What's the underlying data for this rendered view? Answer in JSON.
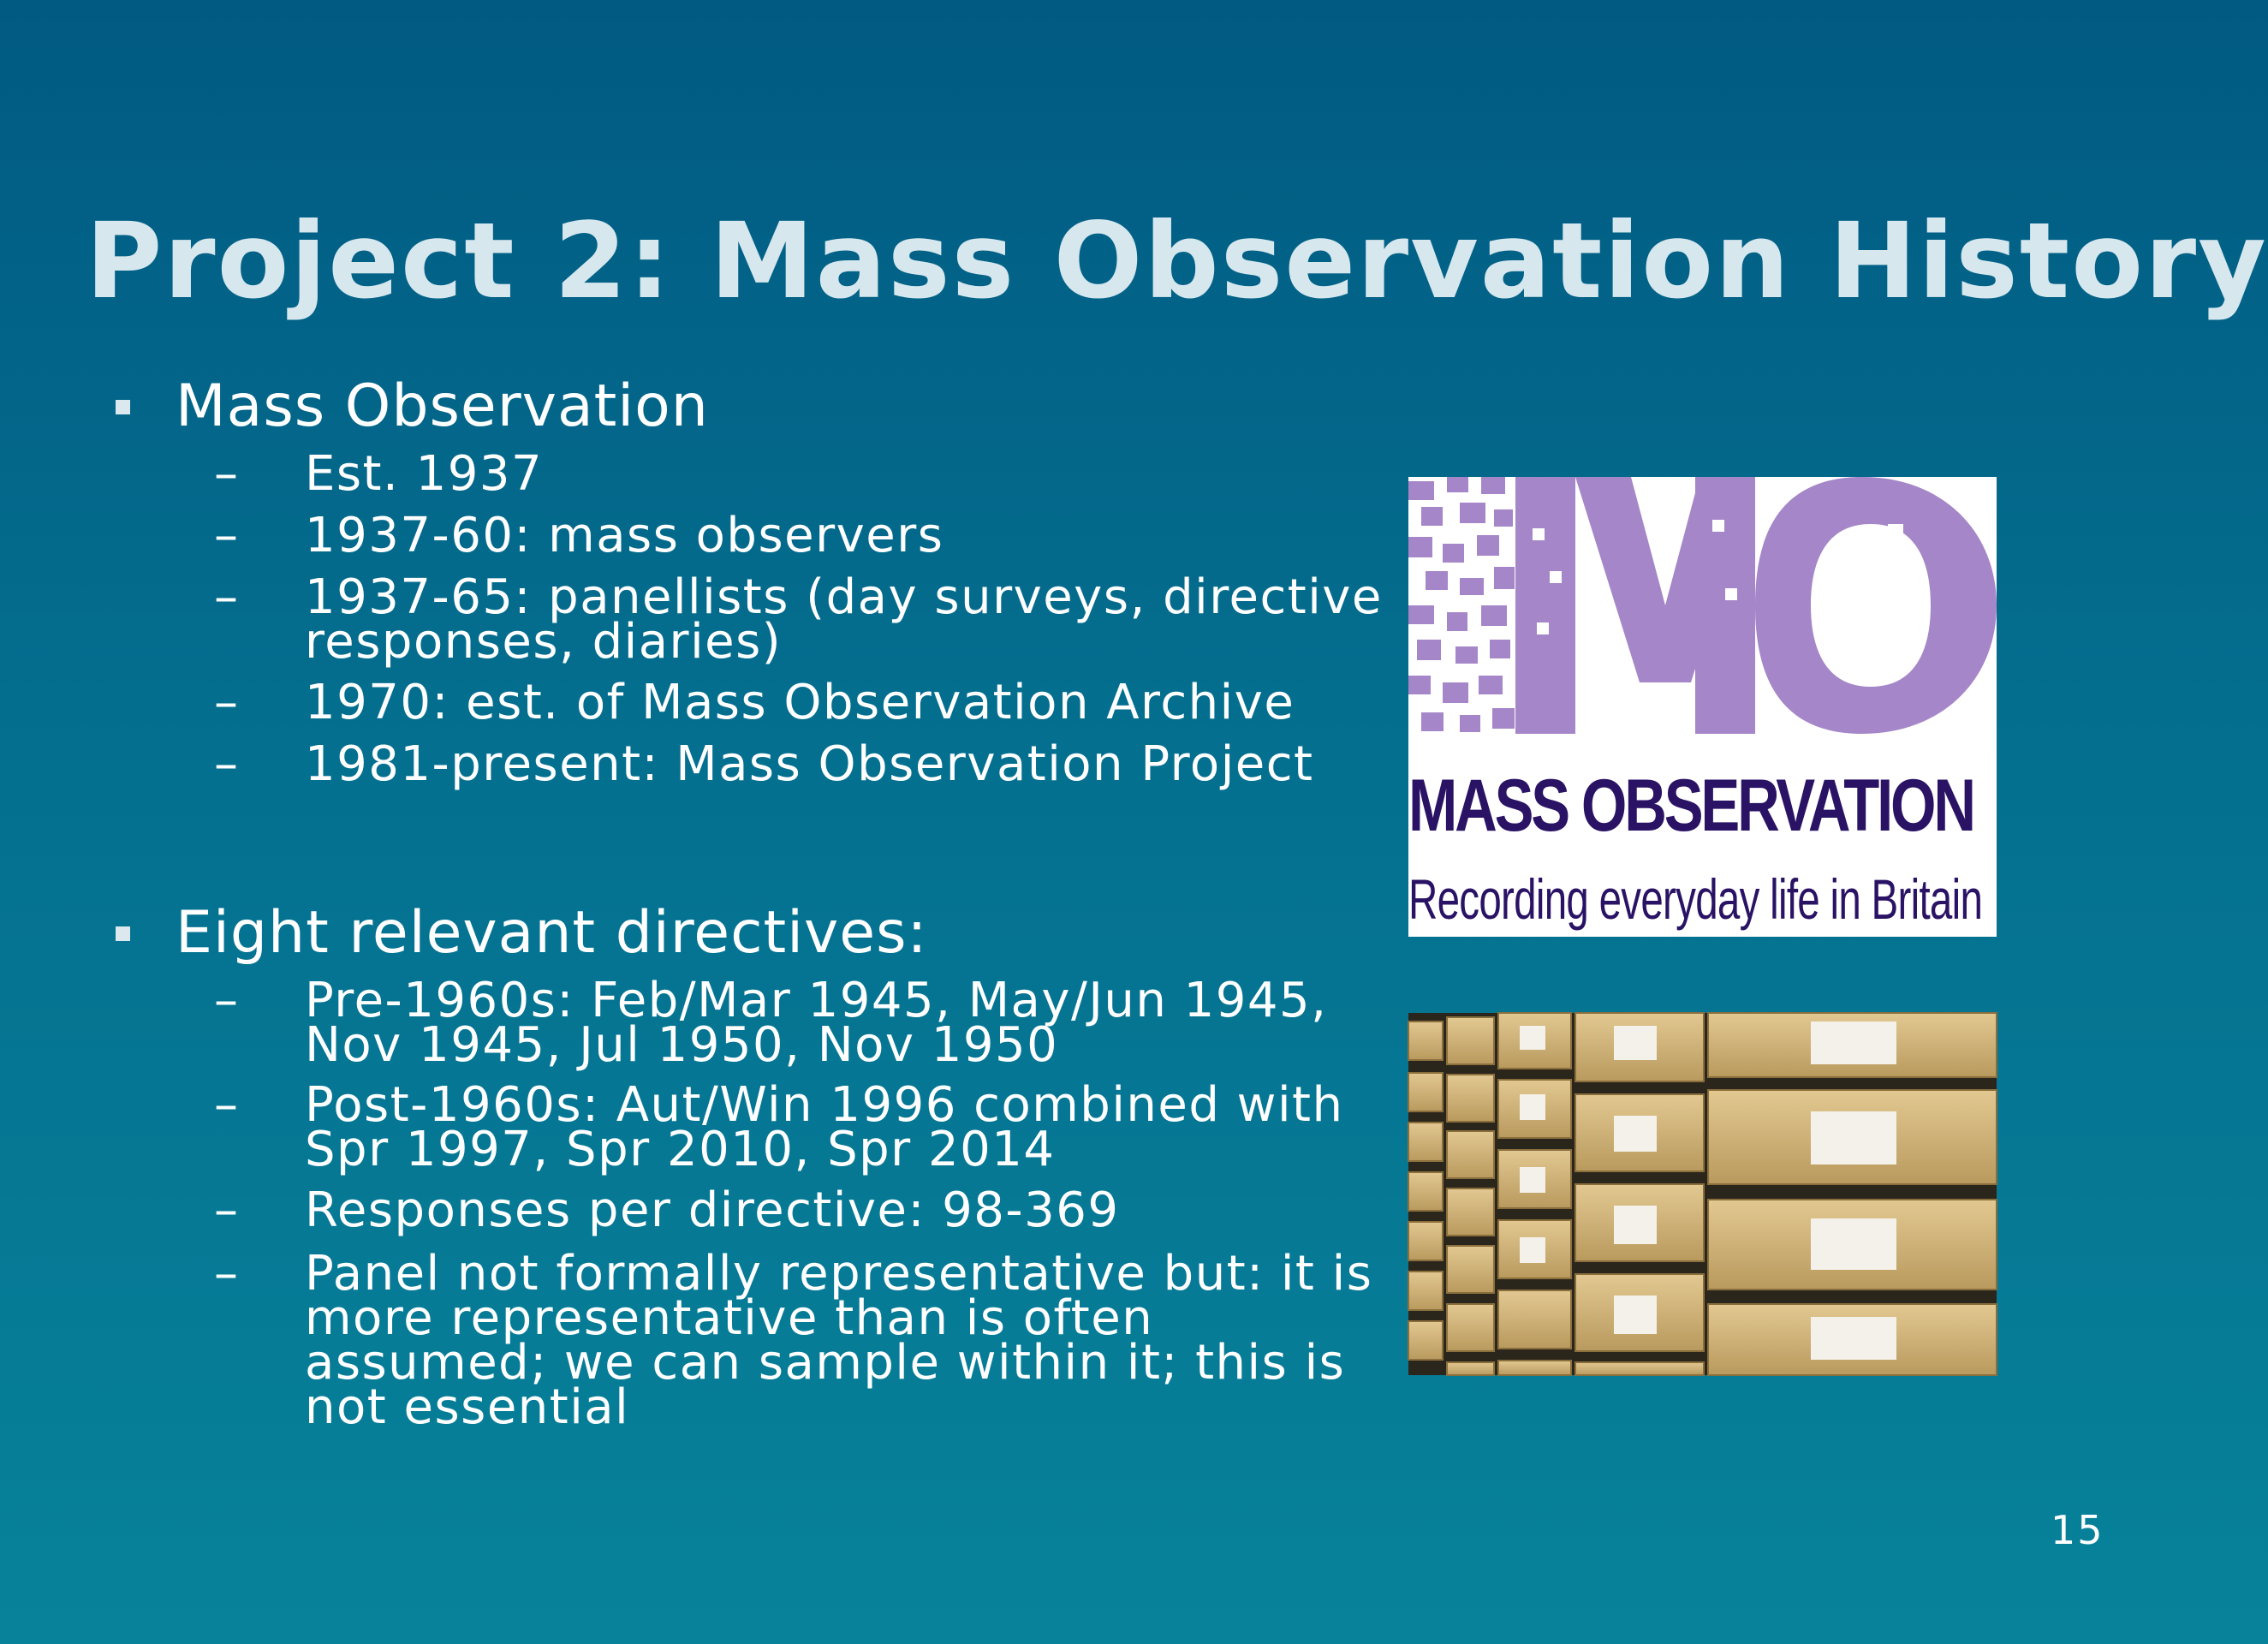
{
  "slide": {
    "title": "Project 2: Mass Observation History",
    "page_number": "15"
  },
  "bullets": [
    {
      "label": "Mass Observation",
      "subs": [
        {
          "dash": "–",
          "lines": [
            "Est. 1937"
          ]
        },
        {
          "dash": "–",
          "lines": [
            "1937-60: mass observers"
          ]
        },
        {
          "dash": "–",
          "lines": [
            "1937-65: panellists (day surveys, directive",
            "responses, diaries)"
          ]
        },
        {
          "dash": "–",
          "lines": [
            "1970: est. of Mass Observation Archive"
          ]
        },
        {
          "dash": "–",
          "lines": [
            "1981-present: Mass Observation Project"
          ]
        }
      ]
    },
    {
      "label": "Eight relevant directives:",
      "subs": [
        {
          "dash": "–",
          "lines": [
            "Pre-1960s: Feb/Mar 1945, May/Jun 1945,",
            "Nov 1945, Jul 1950, Nov 1950"
          ]
        },
        {
          "dash": "–",
          "lines": [
            "Post-1960s: Aut/Win 1996 combined with",
            "Spr 1997, Spr 2010, Spr 2014"
          ]
        },
        {
          "dash": "–",
          "lines": [
            "Responses per directive: 98-369"
          ]
        },
        {
          "dash": "–",
          "lines": [
            "Panel not formally representative but: it is",
            "more representative than is often",
            "assumed; we can sample within it; this is",
            "not essential"
          ]
        }
      ]
    }
  ],
  "logo": {
    "mark": "MO",
    "brand": "MASS OBSERVATION",
    "tagline": "Recording everyday life in Britain",
    "color": "#a586c8",
    "text_color": "#2a1365"
  },
  "photo": {
    "subject": "archive shelves with cardboard boxes"
  }
}
